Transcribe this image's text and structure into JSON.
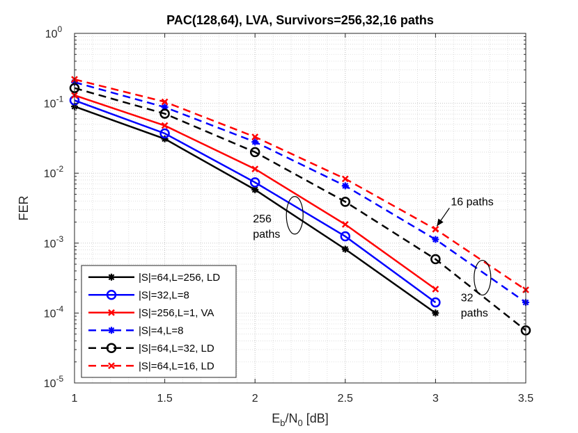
{
  "chart_data": {
    "type": "line",
    "title": "PAC(128,64), LVA, Survivors=256,32,16 paths",
    "xlabel": {
      "main": "E",
      "sub1": "b",
      "mid": "/N",
      "sub2": "0",
      "tail": " [dB]"
    },
    "ylabel": "FER",
    "xlim": [
      1,
      3.5
    ],
    "ylim": [
      1e-05,
      1
    ],
    "yscale": "log",
    "grid": true,
    "minor_grid": true,
    "x_ticks": [
      1,
      1.5,
      2,
      2.5,
      3,
      3.5
    ],
    "x_tick_labels": [
      "1",
      "1.5",
      "2",
      "2.5",
      "3",
      "3.5"
    ],
    "y_ticks": [
      {
        "base": "10",
        "exp": "0",
        "value": 1
      },
      {
        "base": "10",
        "exp": "-1",
        "value": 0.1
      },
      {
        "base": "10",
        "exp": "-2",
        "value": 0.01
      },
      {
        "base": "10",
        "exp": "-3",
        "value": 0.001
      },
      {
        "base": "10",
        "exp": "-4",
        "value": 0.0001
      },
      {
        "base": "10",
        "exp": "-5",
        "value": 1e-05
      }
    ],
    "legend_position": "bottom-left",
    "series": [
      {
        "name": "|S|=64,L=256, LD",
        "color": "#000000",
        "dash": "solid",
        "marker": "asterisk",
        "x": [
          1,
          1.5,
          2,
          2.5,
          3
        ],
        "y": [
          0.09,
          0.031,
          0.0058,
          0.00082,
          0.0001
        ]
      },
      {
        "name": "|S|=32,L=8",
        "color": "#0000ff",
        "dash": "solid",
        "marker": "circle",
        "x": [
          1,
          1.5,
          2,
          2.5,
          3
        ],
        "y": [
          0.11,
          0.037,
          0.0074,
          0.00125,
          0.000142
        ]
      },
      {
        "name": "|S|=256,L=1, VA",
        "color": "#ff0000",
        "dash": "solid",
        "marker": "x",
        "x": [
          1,
          1.5,
          2,
          2.5,
          3
        ],
        "y": [
          0.13,
          0.048,
          0.0115,
          0.00185,
          0.00022
        ]
      },
      {
        "name": "|S|=4,L=8",
        "color": "#0000ff",
        "dash": "dashed",
        "marker": "asterisk",
        "x": [
          1,
          1.5,
          2,
          2.5,
          3,
          3.5
        ],
        "y": [
          0.2,
          0.088,
          0.028,
          0.0066,
          0.00113,
          0.000142
        ]
      },
      {
        "name": "|S|=64,L=32, LD",
        "color": "#000000",
        "dash": "dashed",
        "marker": "circle",
        "x": [
          1,
          1.5,
          2,
          2.5,
          3,
          3.5
        ],
        "y": [
          0.165,
          0.071,
          0.02,
          0.0039,
          0.00059,
          5.65e-05
        ]
      },
      {
        "name": "|S|=64,L=16, LD",
        "color": "#ff0000",
        "dash": "dashed",
        "marker": "x",
        "x": [
          1,
          1.5,
          2,
          2.5,
          3,
          3.5
        ],
        "y": [
          0.22,
          0.105,
          0.033,
          0.0083,
          0.00158,
          0.000215
        ]
      }
    ],
    "annotations": [
      {
        "id": "a256",
        "lines": [
          "256",
          "paths"
        ],
        "ellipse_at": {
          "x": 2.22,
          "y": 0.0025
        }
      },
      {
        "id": "a16",
        "lines": [
          "16 paths"
        ],
        "arrow_to": {
          "x": 3,
          "y": 0.0016
        }
      },
      {
        "id": "a32",
        "lines": [
          "32",
          "paths"
        ],
        "ellipse_at": {
          "x": 3.26,
          "y": 0.00032
        }
      }
    ]
  }
}
